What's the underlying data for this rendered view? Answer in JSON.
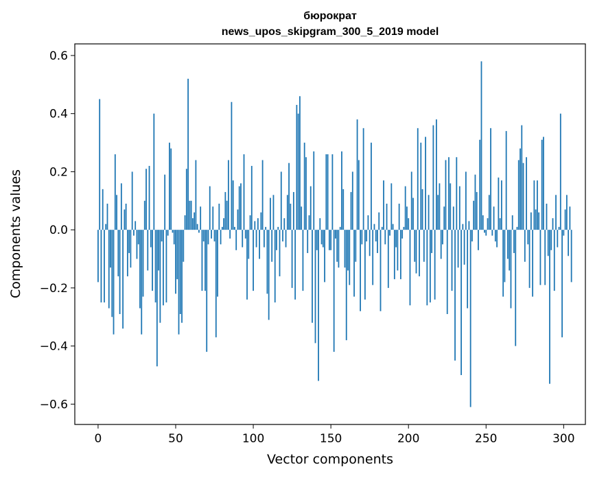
{
  "chart_data": {
    "type": "bar",
    "title": "бюрократ",
    "subtitle": "news_upos_skipgram_300_5_2019 model",
    "xlabel": "Vector components",
    "ylabel": "Components values",
    "xlim": [
      -15,
      314
    ],
    "ylim": [
      -0.67,
      0.64
    ],
    "xticks": [
      0,
      50,
      100,
      150,
      200,
      250,
      300
    ],
    "yticks": [
      -0.6,
      -0.4,
      -0.2,
      0.0,
      0.2,
      0.4,
      0.6
    ],
    "xtick_labels": [
      "0",
      "50",
      "100",
      "150",
      "200",
      "250",
      "300"
    ],
    "ytick_labels": [
      "−0.6",
      "−0.4",
      "−0.2",
      "0.0",
      "0.2",
      "0.4",
      "0.6"
    ],
    "grid": false,
    "bar_color": "#1f77b4",
    "values": [
      -0.18,
      0.45,
      -0.25,
      0.14,
      -0.25,
      0.02,
      0.09,
      -0.27,
      -0.13,
      -0.3,
      -0.36,
      0.26,
      0.12,
      -0.16,
      -0.29,
      0.16,
      -0.34,
      0.07,
      0.09,
      -0.16,
      -0.08,
      -0.13,
      0.2,
      -0.02,
      0.03,
      -0.1,
      -0.05,
      -0.27,
      -0.36,
      -0.23,
      0.1,
      0.21,
      -0.14,
      0.22,
      -0.06,
      -0.21,
      0.4,
      -0.25,
      -0.47,
      -0.14,
      -0.32,
      -0.04,
      -0.26,
      0.19,
      -0.25,
      -0.02,
      0.3,
      0.28,
      -0.01,
      -0.05,
      -0.22,
      -0.17,
      -0.36,
      -0.29,
      -0.32,
      -0.11,
      0.05,
      0.21,
      0.52,
      0.1,
      0.1,
      0.04,
      0.06,
      0.24,
      0.02,
      -0.01,
      0.08,
      -0.21,
      -0.04,
      -0.21,
      -0.42,
      -0.05,
      0.15,
      -0.03,
      0.08,
      -0.04,
      -0.37,
      -0.23,
      0.09,
      -0.05,
      0.01,
      0.04,
      0.13,
      0.1,
      0.24,
      -0.03,
      0.44,
      0.17,
      0.01,
      -0.07,
      0.07,
      0.15,
      0.16,
      -0.06,
      0.26,
      -0.03,
      -0.24,
      -0.1,
      0.05,
      0.22,
      -0.21,
      0.03,
      -0.06,
      0.04,
      -0.1,
      0.06,
      0.24,
      -0.06,
      0.01,
      -0.22,
      -0.31,
      0.11,
      -0.11,
      0.12,
      -0.25,
      -0.07,
      0.01,
      -0.16,
      0.2,
      -0.04,
      0.04,
      -0.06,
      0.12,
      0.23,
      0.09,
      -0.2,
      0.13,
      -0.24,
      0.43,
      0.4,
      0.46,
      0.08,
      -0.21,
      0.3,
      0.25,
      -0.08,
      0.05,
      0.15,
      -0.32,
      0.27,
      -0.39,
      -0.07,
      -0.52,
      0.04,
      -0.05,
      -0.06,
      -0.18,
      0.26,
      0.26,
      -0.07,
      -0.07,
      0.26,
      -0.42,
      -0.03,
      -0.11,
      -0.13,
      0.01,
      0.27,
      0.14,
      -0.13,
      -0.38,
      -0.14,
      -0.19,
      0.13,
      0.2,
      -0.23,
      -0.11,
      0.38,
      0.24,
      -0.28,
      -0.05,
      0.35,
      -0.24,
      -0.04,
      0.05,
      -0.09,
      0.3,
      -0.19,
      0.02,
      -0.04,
      -0.08,
      0.06,
      -0.28,
      0.01,
      0.17,
      -0.05,
      0.09,
      -0.2,
      -0.02,
      0.16,
      0.02,
      -0.17,
      -0.06,
      -0.14,
      0.09,
      -0.17,
      -0.03,
      0.01,
      0.15,
      0.08,
      0.04,
      -0.26,
      0.2,
      0.11,
      -0.11,
      -0.15,
      0.35,
      -0.16,
      0.3,
      0.14,
      -0.11,
      0.32,
      -0.26,
      0.12,
      -0.25,
      -0.08,
      0.36,
      -0.24,
      0.38,
      0.12,
      0.16,
      -0.1,
      -0.05,
      0.08,
      0.24,
      -0.29,
      0.25,
      0.16,
      -0.21,
      0.08,
      -0.45,
      0.25,
      -0.13,
      0.15,
      -0.5,
      0.02,
      -0.12,
      0.2,
      -0.27,
      0.03,
      -0.61,
      -0.04,
      0.1,
      0.19,
      0.13,
      -0.07,
      0.31,
      0.58,
      0.05,
      -0.01,
      -0.02,
      0.04,
      0.12,
      0.35,
      -0.02,
      0.08,
      -0.04,
      -0.06,
      0.18,
      0.04,
      0.17,
      -0.23,
      -0.18,
      0.34,
      -0.1,
      -0.14,
      -0.27,
      0.05,
      -0.08,
      -0.4,
      0.01,
      0.24,
      0.28,
      0.36,
      0.23,
      -0.11,
      0.25,
      -0.05,
      -0.2,
      0.06,
      -0.23,
      0.17,
      0.07,
      0.17,
      0.06,
      -0.19,
      0.31,
      0.32,
      -0.19,
      0.09,
      -0.09,
      -0.53,
      -0.07,
      0.04,
      -0.21,
      0.12,
      -0.06,
      0.01,
      0.4,
      -0.37,
      -0.02,
      0.07,
      0.12,
      -0.09,
      0.08,
      -0.18
    ]
  }
}
